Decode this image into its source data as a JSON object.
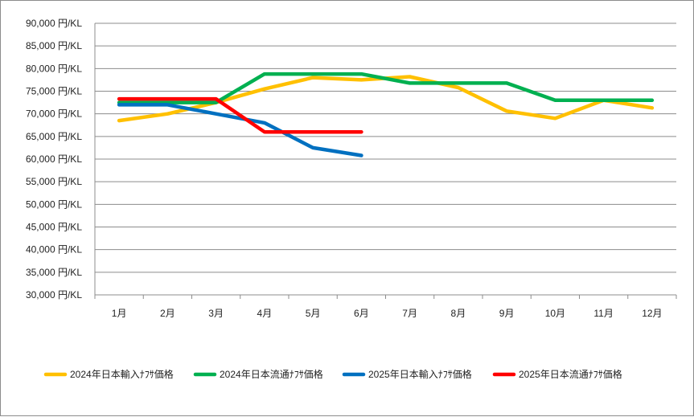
{
  "chart_data": {
    "type": "line",
    "title": "",
    "xlabel": "",
    "ylabel": "",
    "categories": [
      "1月",
      "2月",
      "3月",
      "4月",
      "5月",
      "6月",
      "7月",
      "8月",
      "9月",
      "10月",
      "11月",
      "12月"
    ],
    "ylim": [
      30000,
      90000
    ],
    "ytick_step": 5000,
    "ytick_unit": " 円/KL",
    "grid": true,
    "legend_position": "bottom",
    "series": [
      {
        "name": "2024年日本輸入ﾅﾌｻ価格",
        "color": "#FFC000",
        "values": [
          68500,
          70000,
          72500,
          75500,
          78000,
          77500,
          78200,
          75800,
          70600,
          69000,
          73000,
          71300
        ]
      },
      {
        "name": "2024年日本流通ﾅﾌｻ価格",
        "color": "#00B050",
        "values": [
          72500,
          72500,
          72500,
          78800,
          78800,
          78800,
          76800,
          76800,
          76800,
          73000,
          73000,
          73000
        ]
      },
      {
        "name": "2025年日本輸入ﾅﾌｻ価格",
        "color": "#0070C0",
        "values": [
          72000,
          72000,
          70000,
          68000,
          62500,
          60800,
          null,
          null,
          null,
          null,
          null,
          null
        ]
      },
      {
        "name": "2025年日本流通ﾅﾌｻ価格",
        "color": "#FF0000",
        "values": [
          73300,
          73300,
          73300,
          66000,
          66000,
          66000,
          null,
          null,
          null,
          null,
          null,
          null
        ]
      }
    ]
  }
}
